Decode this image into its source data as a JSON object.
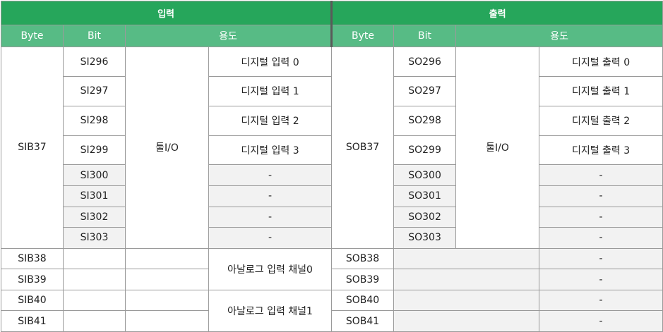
{
  "header": {
    "input_title": "입력",
    "output_title": "출력",
    "input_columns": [
      "Byte",
      "Bit",
      "용도"
    ],
    "output_columns": [
      "Byte",
      "Bit",
      "용도"
    ]
  },
  "input": {
    "byte_sib37": "SIB37",
    "bits": [
      "SI296",
      "SI297",
      "SI298",
      "SI299",
      "SI300",
      "SI301",
      "SI302",
      "SI303"
    ],
    "group_label": "툴I/O",
    "uses": [
      "디지털 입력 0",
      "디지털 입력 1",
      "디지털 입력 2",
      "디지털 입력 3",
      "-",
      "-",
      "-",
      "-"
    ],
    "extra_bytes": [
      "SIB38",
      "SIB39",
      "SIB40",
      "SIB41"
    ],
    "analog_uses": [
      "아날로그 입력 채널0",
      "아날로그 입력 채널1"
    ]
  },
  "output": {
    "byte_sob37": "SOB37",
    "bits": [
      "SO296",
      "SO297",
      "SO298",
      "SO299",
      "SO300",
      "SO301",
      "SO302",
      "SO303"
    ],
    "group_label": "툴I/O",
    "uses": [
      "디지털 출력 0",
      "디지털 출력 1",
      "디지털 출력 2",
      "디지털 출력 3",
      "-",
      "-",
      "-",
      "-"
    ],
    "extra_bytes": [
      "SOB38",
      "SOB39",
      "SOB40",
      "SOB41"
    ],
    "extra_uses": [
      "-",
      "-",
      "-",
      "-"
    ]
  }
}
